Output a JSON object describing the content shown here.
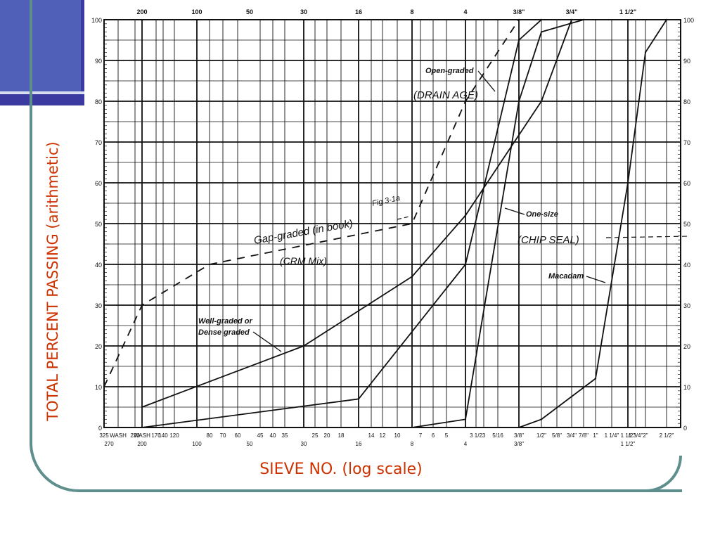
{
  "ylabel": "TOTAL PERCENT PASSING (arithmetic)",
  "xlabel": "SIEVE NO. (log scale)",
  "chart_data": {
    "type": "line",
    "xlabel": "SIEVE NO. (log scale)",
    "ylabel": "TOTAL PERCENT PASSING (arithmetic)",
    "x_scale": "log",
    "ylim": [
      0,
      100
    ],
    "grid": true,
    "x_ticks": {
      "top": [
        "200",
        "100",
        "50",
        "30",
        "16",
        "8",
        "4",
        "3/8\"",
        "3/4\"",
        "1 1/2\""
      ],
      "bottom": [
        "325",
        "WASH",
        "230",
        "WASH",
        "170",
        "140",
        "120",
        "80",
        "70",
        "60",
        "45",
        "40",
        "35",
        "25",
        "20",
        "18",
        "14",
        "12",
        "10",
        "7",
        "6",
        "5",
        "3 1/2",
        "3",
        "5/16",
        "3/8\"",
        "1/2\"",
        "5/8\"",
        "3/4\"",
        "7/8\"",
        "1\"",
        "1 1/4\"",
        "1 1/2\"",
        "1 3/4\"",
        "2\"",
        "2 1/2\""
      ],
      "bottom_second_row": [
        "270",
        "200",
        "100",
        "50",
        "30",
        "16",
        "8",
        "4",
        "3/8\"",
        "1 1/2\""
      ]
    },
    "y_ticks": [
      "0",
      "10",
      "20",
      "30",
      "40",
      "50",
      "60",
      "70",
      "80",
      "90",
      "100"
    ],
    "series": [
      {
        "name": "Gap-graded",
        "style": "dashed",
        "points": [
          [
            "325",
            10
          ],
          [
            "200",
            30
          ],
          [
            "80",
            40
          ],
          [
            "8",
            50
          ],
          [
            "4",
            80
          ],
          [
            "3/8\"",
            100
          ]
        ]
      },
      {
        "name": "Well-graded or Dense graded",
        "style": "solid",
        "points": [
          [
            "200",
            5
          ],
          [
            "30",
            20
          ],
          [
            "8",
            37
          ],
          [
            "4",
            52
          ],
          [
            "1/2\"",
            80
          ],
          [
            "3/4\"",
            100
          ]
        ]
      },
      {
        "name": "Open-graded",
        "style": "solid",
        "points": [
          [
            "200",
            0
          ],
          [
            "16",
            7
          ],
          [
            "4",
            40
          ],
          [
            "3/8\"",
            95
          ],
          [
            "1/2\"",
            100
          ]
        ]
      },
      {
        "name": "One-size",
        "style": "solid",
        "points": [
          [
            "8",
            0
          ],
          [
            "4",
            2
          ],
          [
            "3/8\"",
            80
          ],
          [
            "1/2\"",
            97
          ],
          [
            "7/8\"",
            100
          ]
        ]
      },
      {
        "name": "Macadam",
        "style": "solid",
        "points": [
          [
            "3/8\"",
            0
          ],
          [
            "1/2\"",
            2
          ],
          [
            "1\"",
            12
          ],
          [
            "1 1/2\"",
            60
          ],
          [
            "2\"",
            92
          ],
          [
            "2 1/2\"",
            100
          ]
        ]
      }
    ]
  },
  "annotations": {
    "open_graded": "Open-graded",
    "open_graded_handwritten": "(DRAIN AGE)",
    "gap_graded_handwritten": "Gap-graded (in book)",
    "gap_graded_note": "(CRM Mix)",
    "figure_ref": "Fig 3-1a",
    "one_size": "One-size",
    "one_size_handwritten": "(CHIP SEAL)",
    "macadam": "Macadam",
    "well_graded_1": "Well-graded or",
    "well_graded_2": "Dense graded"
  },
  "colors": {
    "accent_title": "#cc3300",
    "frame": "#5f8f8c",
    "accent_block": "#3a3aa0",
    "accent_block_light": "#5060b8"
  }
}
